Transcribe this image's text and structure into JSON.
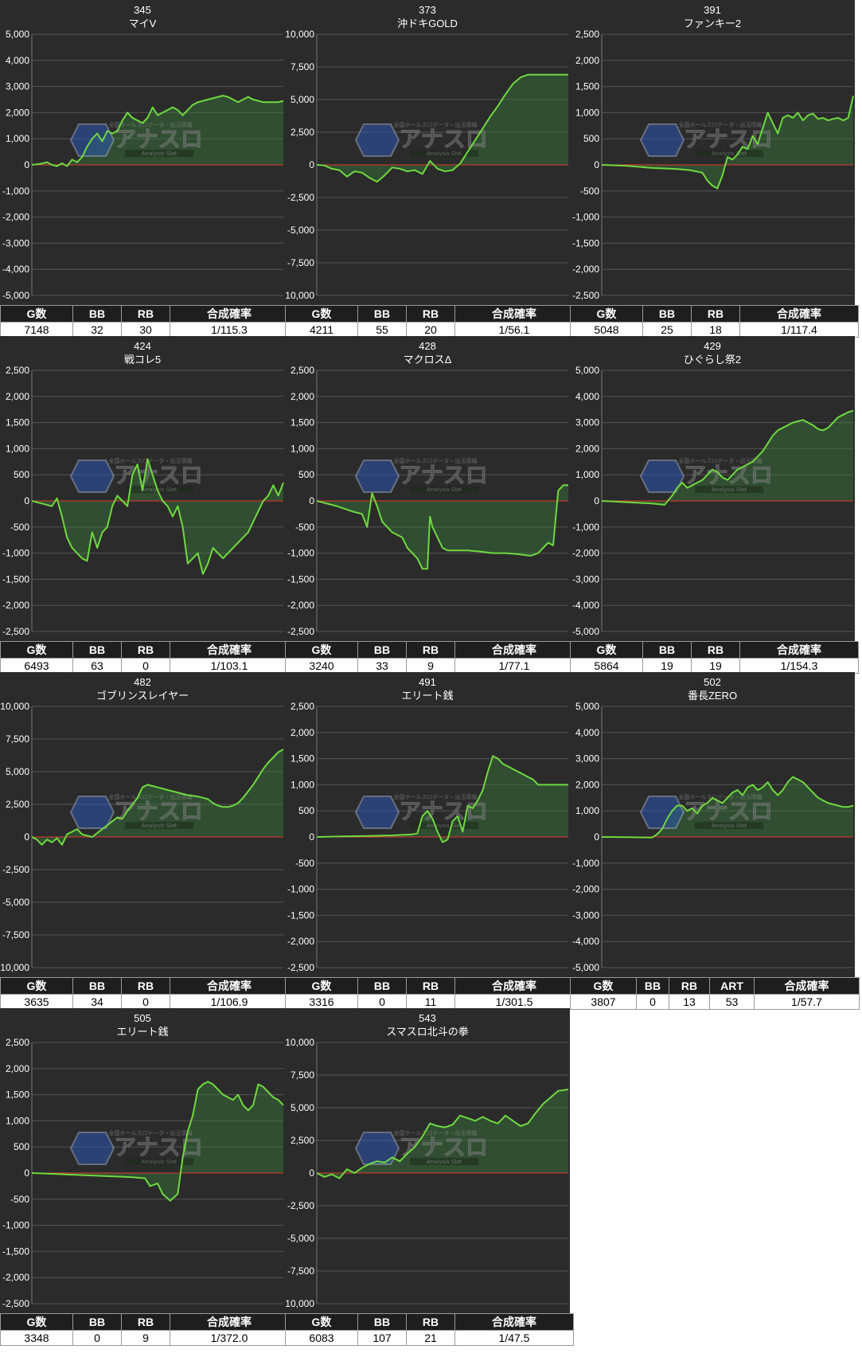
{
  "stat_headers": {
    "games": "G数",
    "bb": "BB",
    "rb": "RB",
    "art": "ART",
    "prob": "合成確率"
  },
  "colors": {
    "line": "#6fd93f",
    "fill": "#3a7a3c",
    "zero_line": "#e03b2f",
    "grid": "#555555",
    "panel_bg": "#2b2b2b"
  },
  "logo": {
    "text": "アナスロ",
    "tagline": "全国ホールスロデータ・出玉情報",
    "subtitle": "Analysis Slot"
  },
  "panels": [
    {
      "number": "345",
      "name": "マイV",
      "stats": [
        "7148",
        "32",
        "30",
        "1/115.3"
      ],
      "chart_data": {
        "type": "line",
        "ylim": [
          -5000,
          5000
        ],
        "yticks": [
          "5,000",
          "4,000",
          "3,000",
          "2,000",
          "1,000",
          "0",
          "-1,000",
          "-2,000",
          "-3,000",
          "-4,000",
          "-5,000"
        ],
        "x": [
          0,
          2,
          4,
          6,
          8,
          10,
          12,
          14,
          16,
          18,
          20,
          22,
          24,
          26,
          28,
          30,
          32,
          34,
          36,
          38,
          40,
          42,
          44,
          46,
          48,
          50,
          52,
          54,
          56,
          58,
          60,
          62,
          64,
          66,
          68,
          70,
          72,
          74,
          76,
          78,
          80,
          82,
          84,
          86,
          88,
          90,
          92,
          94,
          96,
          98,
          100
        ],
        "y": [
          0,
          20,
          50,
          100,
          0,
          -50,
          60,
          -50,
          200,
          100,
          300,
          700,
          1000,
          1200,
          900,
          1300,
          1200,
          1300,
          1700,
          2000,
          1800,
          1700,
          1600,
          1800,
          2200,
          1900,
          2000,
          2100,
          2200,
          2100,
          1900,
          2100,
          2300,
          2400,
          2450,
          2500,
          2550,
          2600,
          2650,
          2600,
          2500,
          2400,
          2500,
          2600,
          2500,
          2450,
          2400,
          2400,
          2400,
          2400,
          2450
        ]
      }
    },
    {
      "number": "373",
      "name": "沖ドキGOLD",
      "stats": [
        "4211",
        "55",
        "20",
        "1/56.1"
      ],
      "chart_data": {
        "type": "line",
        "ylim": [
          -10000,
          10000
        ],
        "yticks": [
          "10,000",
          "7,500",
          "5,000",
          "2,500",
          "0",
          "-2,500",
          "-5,000",
          "-7,500",
          "-10,000"
        ],
        "x": [
          0,
          3,
          6,
          9,
          12,
          15,
          18,
          21,
          24,
          27,
          30,
          33,
          36,
          39,
          42,
          45,
          48,
          51,
          54,
          57,
          60,
          63,
          66,
          69,
          72,
          75,
          78,
          81,
          84,
          87,
          90,
          93,
          96,
          100
        ],
        "y": [
          0,
          -50,
          -300,
          -400,
          -900,
          -500,
          -600,
          -1000,
          -1300,
          -800,
          -200,
          -300,
          -500,
          -400,
          -700,
          300,
          -300,
          -500,
          -400,
          100,
          1000,
          1900,
          2800,
          3700,
          4500,
          5400,
          6200,
          6700,
          6900,
          6900,
          6900,
          6900,
          6900,
          6900
        ]
      }
    },
    {
      "number": "391",
      "name": "ファンキー2",
      "stats": [
        "5048",
        "25",
        "18",
        "1/117.4"
      ],
      "chart_data": {
        "type": "line",
        "ylim": [
          -2500,
          2500
        ],
        "yticks": [
          "2,500",
          "2,000",
          "1,500",
          "1,000",
          "500",
          "0",
          "-500",
          "-1,000",
          "-1,500",
          "-2,000",
          "-2,500"
        ],
        "x": [
          0,
          10,
          20,
          30,
          35,
          40,
          42,
          44,
          46,
          48,
          50,
          52,
          54,
          56,
          58,
          60,
          62,
          64,
          66,
          68,
          70,
          72,
          74,
          76,
          78,
          80,
          82,
          84,
          86,
          88,
          90,
          92,
          94,
          96,
          98,
          100
        ],
        "y": [
          0,
          -20,
          -60,
          -80,
          -100,
          -150,
          -300,
          -400,
          -450,
          -200,
          150,
          100,
          200,
          350,
          300,
          550,
          400,
          700,
          1000,
          800,
          600,
          900,
          950,
          900,
          1000,
          850,
          950,
          980,
          880,
          900,
          850,
          880,
          900,
          850,
          900,
          1320
        ]
      }
    },
    {
      "number": "424",
      "name": "戦コレ5",
      "stats": [
        "6493",
        "63",
        "0",
        "1/103.1"
      ],
      "chart_data": {
        "type": "line",
        "ylim": [
          -2500,
          2500
        ],
        "yticks": [
          "2,500",
          "2,000",
          "1,500",
          "1,000",
          "500",
          "0",
          "-500",
          "-1,000",
          "-1,500",
          "-2,000",
          "-2,500"
        ],
        "x": [
          0,
          4,
          8,
          10,
          12,
          14,
          16,
          18,
          20,
          22,
          24,
          26,
          28,
          30,
          32,
          34,
          36,
          38,
          40,
          42,
          44,
          46,
          48,
          50,
          52,
          54,
          56,
          58,
          60,
          62,
          64,
          66,
          68,
          70,
          72,
          74,
          76,
          78,
          80,
          82,
          84,
          86,
          88,
          90,
          92,
          94,
          96,
          98,
          100
        ],
        "y": [
          0,
          -50,
          -100,
          50,
          -300,
          -700,
          -900,
          -1000,
          -1100,
          -1150,
          -600,
          -900,
          -600,
          -500,
          -100,
          100,
          0,
          -100,
          500,
          700,
          200,
          800,
          500,
          200,
          0,
          -100,
          -300,
          -100,
          -500,
          -1200,
          -1100,
          -1000,
          -1400,
          -1200,
          -900,
          -1000,
          -1100,
          -1000,
          -900,
          -800,
          -700,
          -600,
          -400,
          -200,
          0,
          100,
          300,
          100,
          350
        ]
      }
    },
    {
      "number": "428",
      "name": "マクロスΔ",
      "stats": [
        "3240",
        "33",
        "9",
        "1/77.1"
      ],
      "chart_data": {
        "type": "line",
        "ylim": [
          -2500,
          2500
        ],
        "yticks": [
          "2,500",
          "2,000",
          "1,500",
          "1,000",
          "500",
          "0",
          "-500",
          "-1,000",
          "-1,500",
          "-2,000",
          "-2,500"
        ],
        "x": [
          0,
          8,
          14,
          18,
          20,
          22,
          24,
          26,
          28,
          30,
          32,
          34,
          36,
          38,
          40,
          42,
          44,
          45,
          46,
          48,
          50,
          52,
          55,
          60,
          65,
          70,
          75,
          80,
          85,
          88,
          90,
          92,
          94,
          96,
          98,
          100
        ],
        "y": [
          0,
          -100,
          -200,
          -250,
          -500,
          150,
          -100,
          -400,
          -500,
          -600,
          -650,
          -700,
          -900,
          -1000,
          -1100,
          -1300,
          -1300,
          -300,
          -500,
          -700,
          -900,
          -950,
          -950,
          -950,
          -970,
          -1000,
          -1000,
          -1020,
          -1050,
          -1000,
          -900,
          -800,
          -850,
          200,
          300,
          300
        ]
      }
    },
    {
      "number": "429",
      "name": "ひぐらし祭2",
      "stats": [
        "5864",
        "19",
        "19",
        "1/154.3"
      ],
      "chart_data": {
        "type": "line",
        "ylim": [
          -5000,
          5000
        ],
        "yticks": [
          "5,000",
          "4,000",
          "3,000",
          "2,000",
          "1,000",
          "0",
          "-1,000",
          "-2,000",
          "-3,000",
          "-4,000",
          "-5,000"
        ],
        "x": [
          0,
          10,
          20,
          25,
          28,
          30,
          32,
          34,
          36,
          38,
          40,
          42,
          44,
          46,
          48,
          50,
          52,
          54,
          56,
          58,
          60,
          62,
          64,
          66,
          68,
          70,
          72,
          74,
          76,
          78,
          80,
          82,
          84,
          86,
          88,
          90,
          92,
          94,
          96,
          98,
          100
        ],
        "y": [
          0,
          -50,
          -100,
          -150,
          200,
          500,
          700,
          500,
          600,
          700,
          800,
          1000,
          1200,
          1100,
          900,
          800,
          1000,
          1200,
          1300,
          1400,
          1500,
          1700,
          1900,
          2200,
          2500,
          2700,
          2800,
          2900,
          3000,
          3050,
          3100,
          3000,
          2900,
          2750,
          2700,
          2800,
          3000,
          3200,
          3300,
          3400,
          3450
        ]
      }
    },
    {
      "number": "482",
      "name": "ゴブリンスレイヤー",
      "stats": [
        "3635",
        "34",
        "0",
        "1/106.9"
      ],
      "chart_data": {
        "type": "line",
        "ylim": [
          -10000,
          10000
        ],
        "yticks": [
          "10,000",
          "7,500",
          "5,000",
          "2,500",
          "0",
          "-2,500",
          "-5,000",
          "-7,500",
          "-10,000"
        ],
        "x": [
          0,
          2,
          4,
          6,
          8,
          10,
          12,
          14,
          16,
          18,
          20,
          22,
          24,
          26,
          28,
          30,
          32,
          34,
          36,
          38,
          40,
          42,
          44,
          46,
          48,
          50,
          52,
          54,
          56,
          58,
          60,
          62,
          64,
          66,
          68,
          70,
          72,
          74,
          76,
          78,
          80,
          82,
          84,
          86,
          88,
          90,
          92,
          94,
          96,
          98,
          100
        ],
        "y": [
          0,
          -200,
          -600,
          -200,
          -400,
          -100,
          -600,
          200,
          400,
          600,
          200,
          100,
          0,
          300,
          600,
          900,
          1200,
          1500,
          1400,
          2000,
          2500,
          3000,
          3800,
          4000,
          3900,
          3800,
          3700,
          3600,
          3500,
          3400,
          3300,
          3200,
          3150,
          3100,
          3000,
          2900,
          2600,
          2400,
          2300,
          2300,
          2400,
          2600,
          3000,
          3500,
          4000,
          4600,
          5200,
          5700,
          6100,
          6500,
          6700
        ]
      }
    },
    {
      "number": "491",
      "name": "エリート銭",
      "stats": [
        "3316",
        "0",
        "11",
        "1/301.5"
      ],
      "chart_data": {
        "type": "line",
        "ylim": [
          -2500,
          2500
        ],
        "yticks": [
          "2,500",
          "2,000",
          "1,500",
          "1,000",
          "500",
          "0",
          "-500",
          "-1,000",
          "-1,500",
          "-2,000",
          "-2,500"
        ],
        "x": [
          0,
          10,
          20,
          30,
          38,
          40,
          42,
          44,
          46,
          48,
          50,
          52,
          54,
          56,
          58,
          60,
          62,
          64,
          66,
          68,
          70,
          72,
          74,
          76,
          78,
          80,
          82,
          84,
          86,
          88,
          90,
          92,
          94,
          96,
          98,
          100
        ],
        "y": [
          0,
          10,
          20,
          30,
          50,
          70,
          400,
          500,
          350,
          100,
          -100,
          -50,
          300,
          400,
          100,
          600,
          550,
          700,
          900,
          1250,
          1550,
          1500,
          1400,
          1350,
          1300,
          1250,
          1200,
          1150,
          1100,
          1000,
          1000,
          1000,
          1000,
          1000,
          1000,
          1000
        ]
      }
    },
    {
      "number": "502",
      "name": "番長ZERO",
      "stats": [
        "3807",
        "0",
        "13",
        "53",
        "1/57.7"
      ],
      "chart_data": {
        "type": "line",
        "ylim": [
          -5000,
          5000
        ],
        "yticks": [
          "5,000",
          "4,000",
          "3,000",
          "2,000",
          "1,000",
          "0",
          "-1,000",
          "-2,000",
          "-3,000",
          "-4,000",
          "-5,000"
        ],
        "x": [
          0,
          10,
          20,
          22,
          24,
          26,
          28,
          30,
          32,
          34,
          36,
          38,
          40,
          42,
          44,
          46,
          48,
          50,
          52,
          54,
          56,
          58,
          60,
          62,
          64,
          66,
          68,
          70,
          72,
          74,
          76,
          78,
          80,
          82,
          84,
          86,
          88,
          90,
          92,
          94,
          96,
          98,
          100
        ],
        "y": [
          0,
          -10,
          -20,
          100,
          300,
          700,
          1000,
          1200,
          1200,
          1000,
          1100,
          900,
          1200,
          1300,
          1500,
          1400,
          1300,
          1500,
          1700,
          1800,
          1600,
          1900,
          2000,
          1800,
          1900,
          2100,
          1800,
          1600,
          1800,
          2100,
          2300,
          2200,
          2100,
          1900,
          1700,
          1500,
          1400,
          1300,
          1250,
          1200,
          1150,
          1150,
          1200
        ]
      }
    },
    {
      "number": "505",
      "name": "エリート銭",
      "stats": [
        "3348",
        "0",
        "9",
        "1/372.0"
      ],
      "chart_data": {
        "type": "line",
        "ylim": [
          -2500,
          2500
        ],
        "yticks": [
          "2,500",
          "2,000",
          "1,500",
          "1,000",
          "500",
          "0",
          "-500",
          "-1,000",
          "-1,500",
          "-2,000",
          "-2,500"
        ],
        "x": [
          0,
          10,
          20,
          30,
          40,
          45,
          47,
          50,
          52,
          55,
          58,
          60,
          62,
          64,
          66,
          68,
          70,
          72,
          74,
          76,
          78,
          80,
          82,
          84,
          86,
          88,
          90,
          92,
          94,
          96,
          98,
          100
        ],
        "y": [
          0,
          -20,
          -40,
          -60,
          -80,
          -100,
          -250,
          -200,
          -400,
          -530,
          -400,
          300,
          800,
          1100,
          1600,
          1700,
          1750,
          1700,
          1600,
          1500,
          1450,
          1400,
          1500,
          1300,
          1200,
          1300,
          1700,
          1650,
          1550,
          1450,
          1400,
          1300
        ]
      }
    },
    {
      "number": "543",
      "name": "スマスロ北斗の拳",
      "stats": [
        "6083",
        "107",
        "21",
        "1/47.5"
      ],
      "chart_data": {
        "type": "line",
        "ylim": [
          -10000,
          10000
        ],
        "yticks": [
          "10,000",
          "7,500",
          "5,000",
          "2,500",
          "0",
          "-2,500",
          "-5,000",
          "-7,500",
          "-10,000"
        ],
        "x": [
          0,
          3,
          6,
          9,
          12,
          15,
          18,
          21,
          24,
          27,
          30,
          33,
          36,
          39,
          42,
          45,
          48,
          51,
          54,
          57,
          60,
          63,
          66,
          69,
          72,
          75,
          78,
          81,
          84,
          87,
          90,
          93,
          96,
          100
        ],
        "y": [
          0,
          -300,
          -100,
          -400,
          300,
          0,
          400,
          700,
          900,
          800,
          1200,
          900,
          1500,
          2000,
          2800,
          3800,
          3600,
          3500,
          3700,
          4400,
          4200,
          4000,
          4300,
          4000,
          3800,
          4400,
          4000,
          3600,
          3800,
          4600,
          5300,
          5800,
          6300,
          6400
        ]
      }
    }
  ]
}
